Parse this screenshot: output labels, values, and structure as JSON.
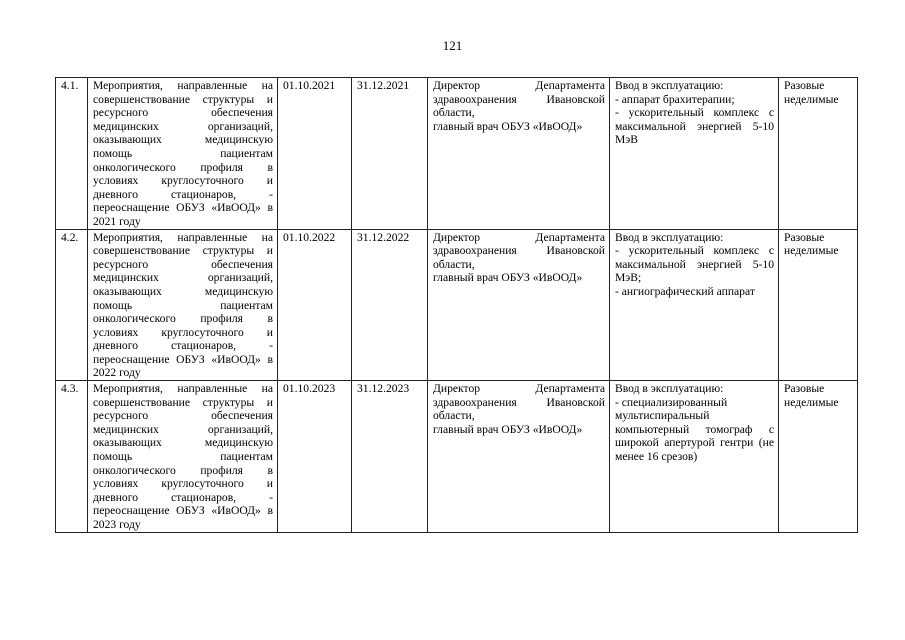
{
  "page_number": "121",
  "rows": [
    {
      "num": "4.1.",
      "description": "Мероприятия, направленные на совершенствование структуры и ресурсного обеспечения медицинских организаций, оказывающих медицинскую помощь пациентам онкологического профиля в условиях круглосуточного и дневного стационаров, - переоснащение ОБУЗ «ИвООД» в 2021 году",
      "start": "01.10.2021",
      "end": "31.12.2021",
      "responsible": "Директор Департамента здравоохранения Ивановской области,",
      "responsible2": "главный врач ОБУЗ «ИвООД»",
      "result": [
        "Ввод в эксплуатацию:",
        "- аппарат брахитерапии;",
        "- ускорительный комплекс с максимальной энергией 5-10 МэВ"
      ],
      "type": "Разовые неделимые"
    },
    {
      "num": "4.2.",
      "description": "Мероприятия, направленные на совершенствование структуры и ресурсного обеспечения медицинских организаций, оказывающих медицинскую помощь пациентам онкологического профиля в условиях круглосуточного и дневного стационаров, - переоснащение ОБУЗ «ИвООД» в 2022 году",
      "start": "01.10.2022",
      "end": "31.12.2022",
      "responsible": "Директор Департамента здравоохранения Ивановской области,",
      "responsible2": "главный врач ОБУЗ «ИвООД»",
      "result": [
        "Ввод в эксплуатацию:",
        "- ускорительный комплекс с максимальной энергией 5-10 МэВ;",
        "- ангиографический аппарат"
      ],
      "type": "Разовые неделимые"
    },
    {
      "num": "4.3.",
      "description": "Мероприятия, направленные на совершенствование структуры и ресурсного обеспечения медицинских организаций, оказывающих медицинскую помощь пациентам онкологического профиля в условиях круглосуточного и дневного стационаров, - переоснащение ОБУЗ «ИвООД» в 2023 году",
      "start": "01.10.2023",
      "end": "31.12.2023",
      "responsible": "Директор Департамента здравоохранения Ивановской области,",
      "responsible2": "главный врач ОБУЗ «ИвООД»",
      "result": [
        "Ввод в эксплуатацию:",
        "- специализированный",
        "мультиспиральный компьютерный томограф с широкой апертурой гентри (не менее 16 срезов)"
      ],
      "type": "Разовые неделимые"
    }
  ]
}
